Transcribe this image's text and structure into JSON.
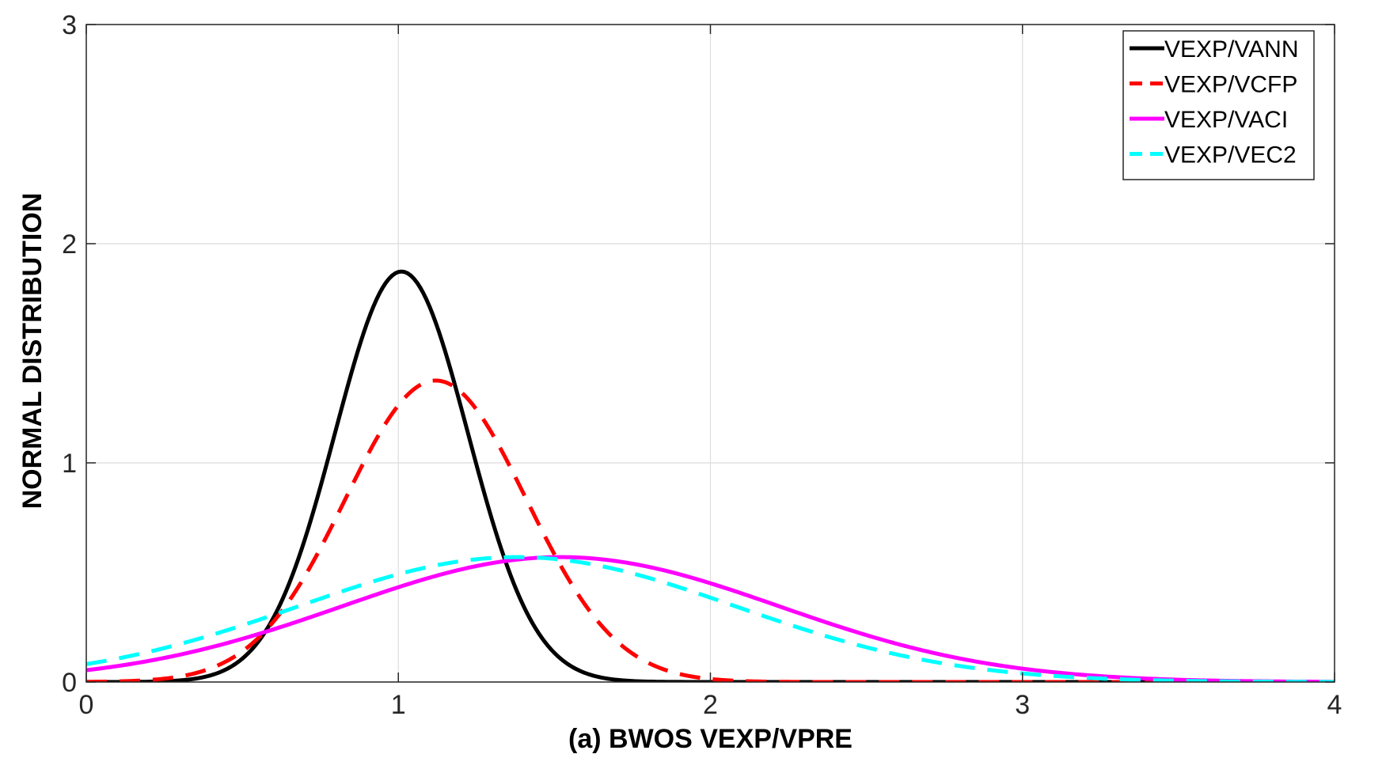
{
  "chart_data": {
    "type": "line",
    "title": "",
    "xlabel": "(a) BWOS VEXP/VPRE",
    "ylabel": "NORMAL DISTRIBUTION",
    "xlim": [
      0,
      4
    ],
    "ylim": [
      0,
      3
    ],
    "xticks": [
      "0",
      "1",
      "2",
      "3",
      "4"
    ],
    "yticks": [
      "0",
      "1",
      "2",
      "3"
    ],
    "grid": true,
    "legend_position": "top-right",
    "series": [
      {
        "name": "VEXP/VANN",
        "mean": 1.01,
        "std": 0.213,
        "color": "#000000",
        "style": "solid"
      },
      {
        "name": "VEXP/VCFP",
        "mean": 1.12,
        "std": 0.29,
        "color": "#ff0000",
        "style": "dashed"
      },
      {
        "name": "VEXP/VACI",
        "mean": 1.52,
        "std": 0.7,
        "color": "#ff00ff",
        "style": "solid"
      },
      {
        "name": "VEXP/VEC2",
        "mean": 1.38,
        "std": 0.7,
        "color": "#00ffff",
        "style": "dashed"
      }
    ]
  }
}
